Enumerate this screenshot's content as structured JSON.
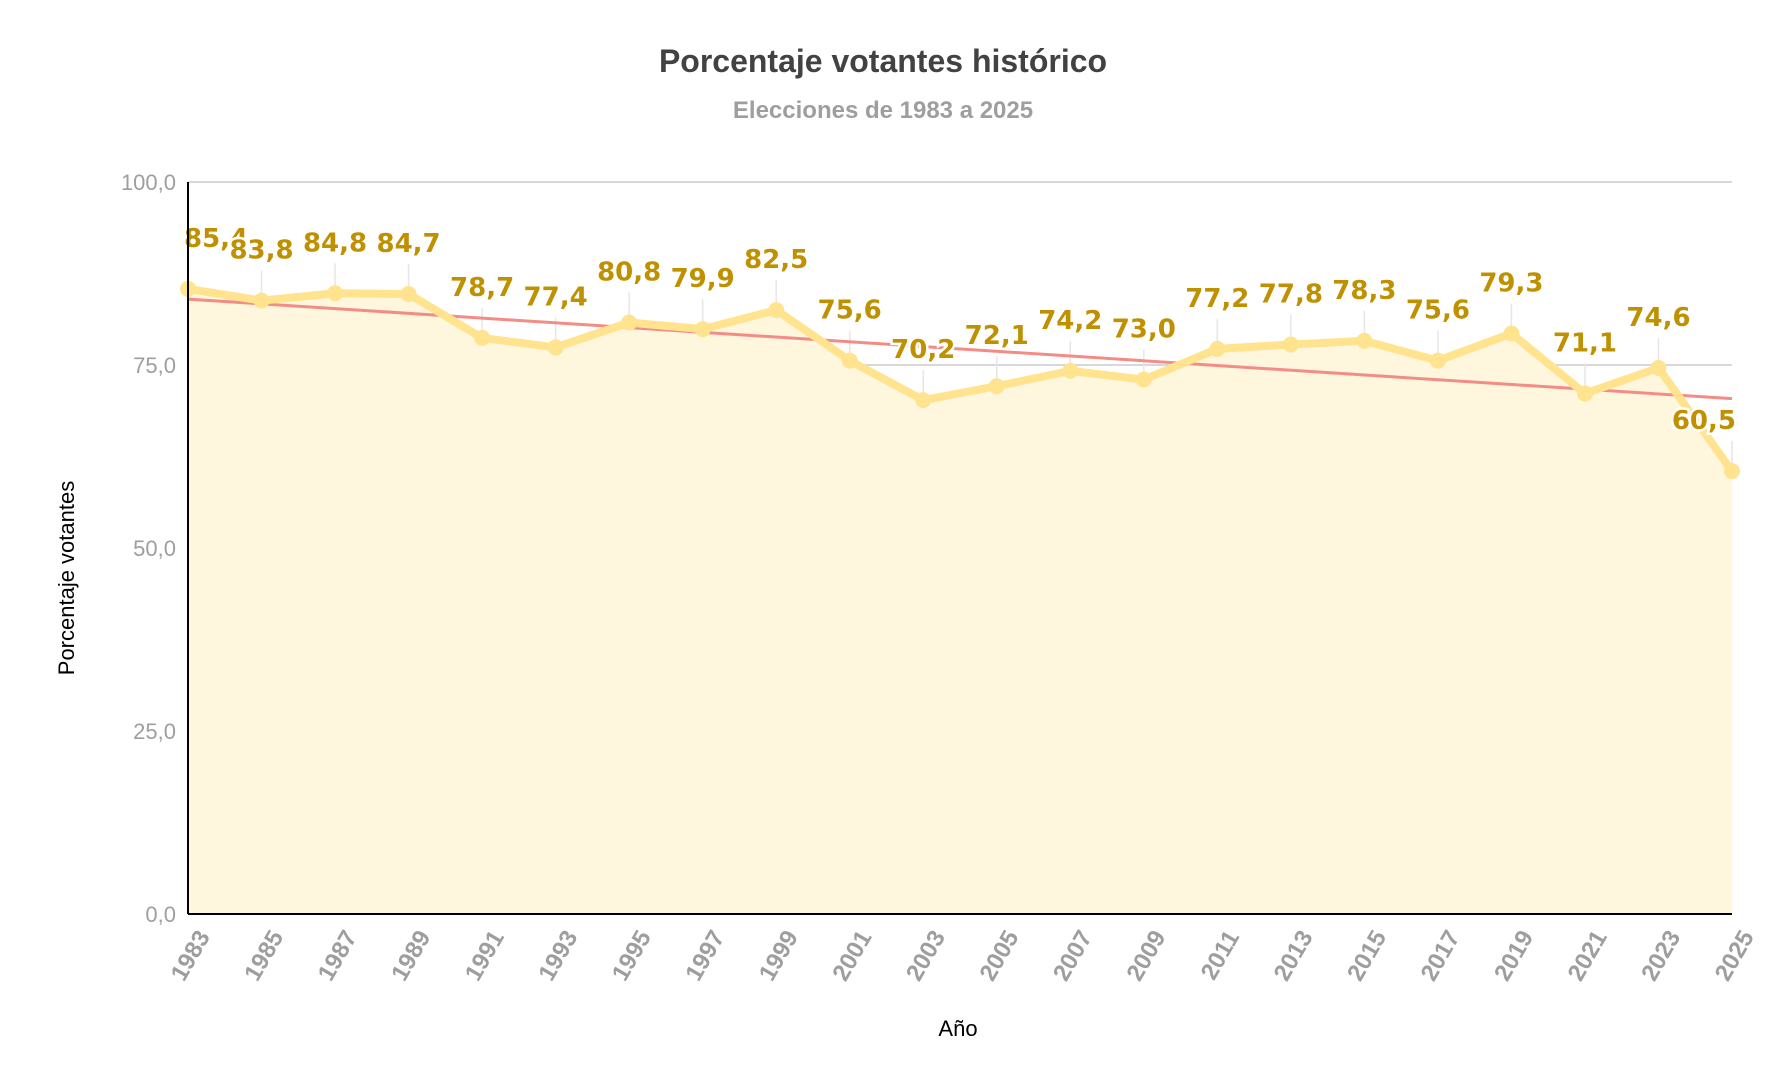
{
  "chart_data": {
    "type": "area",
    "title": "Porcentaje votantes histórico",
    "subtitle": "Elecciones de 1983 a 2025",
    "xlabel": "Año",
    "ylabel": "Porcentaje votantes",
    "ylim": [
      0,
      100
    ],
    "yticks": [
      "0,0",
      "25,0",
      "50,0",
      "75,0",
      "100,0"
    ],
    "ytick_values": [
      0,
      25,
      50,
      75,
      100
    ],
    "categories": [
      "1983",
      "1985",
      "1987",
      "1989",
      "1991",
      "1993",
      "1995",
      "1997",
      "1999",
      "2001",
      "2003",
      "2005",
      "2007",
      "2009",
      "2011",
      "2013",
      "2015",
      "2017",
      "2019",
      "2021",
      "2023",
      "2025"
    ],
    "series": [
      {
        "name": "Porcentaje votantes",
        "values": [
          85.4,
          83.8,
          84.8,
          84.7,
          78.7,
          77.4,
          80.8,
          79.9,
          82.5,
          75.6,
          70.2,
          72.1,
          74.2,
          73.0,
          77.2,
          77.8,
          78.3,
          75.6,
          79.3,
          71.1,
          74.6,
          60.5
        ],
        "labels": [
          "85,4",
          "83,8",
          "84,8",
          "84,7",
          "78,7",
          "77,4",
          "80,8",
          "79,9",
          "82,5",
          "75,6",
          "70,2",
          "72,1",
          "74,2",
          "73,0",
          "77,2",
          "77,8",
          "78,3",
          "75,6",
          "79,3",
          "71,1",
          "74,6",
          "60,5"
        ]
      }
    ],
    "trendline": {
      "start_value": 84.0,
      "end_value": 70.4
    },
    "grid": true,
    "legend": "none",
    "colors": {
      "line": "#ffe38f",
      "fill": "#fff6de",
      "trend": "#f48c86",
      "label": "#bf9000",
      "grid": "#cccccc",
      "axis": "#000000"
    }
  }
}
